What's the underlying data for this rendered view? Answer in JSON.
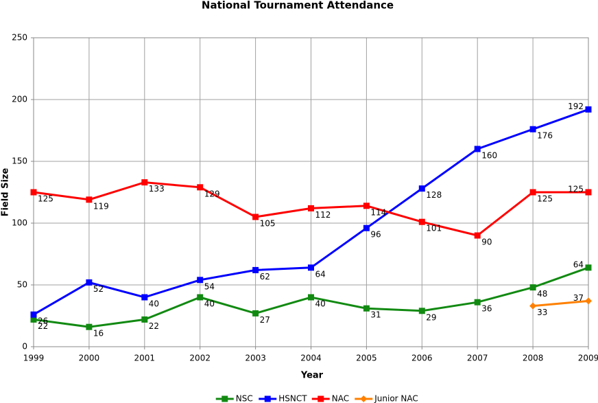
{
  "chart_data": {
    "type": "line",
    "title": "National Tournament Attendance",
    "x_label": "Year",
    "y_label": "Field Size",
    "x": [
      1999,
      2000,
      2001,
      2002,
      2003,
      2004,
      2005,
      2006,
      2007,
      2008,
      2009
    ],
    "xlim": [
      1999,
      2009
    ],
    "xticks": [
      1999,
      2000,
      2001,
      2002,
      2003,
      2004,
      2005,
      2006,
      2007,
      2008,
      2009
    ],
    "ylim": [
      0,
      250
    ],
    "yticks": [
      0,
      50,
      100,
      150,
      200,
      250
    ],
    "grid": true,
    "legend": "bottom",
    "series": [
      {
        "name": "NSC",
        "color": "#128a12",
        "marker": "square",
        "values": [
          22,
          16,
          22,
          40,
          27,
          40,
          31,
          29,
          36,
          48,
          64
        ]
      },
      {
        "name": "HSNCT",
        "color": "#0000ff",
        "marker": "square",
        "values": [
          26,
          52,
          40,
          54,
          62,
          64,
          96,
          128,
          160,
          176,
          192
        ]
      },
      {
        "name": "NAC",
        "color": "#ff0000",
        "marker": "square",
        "values": [
          125,
          119,
          133,
          129,
          105,
          112,
          114,
          101,
          90,
          125,
          125
        ]
      },
      {
        "name": "Junior NAC",
        "color": "#ff8000",
        "marker": "diamond",
        "values": [
          null,
          null,
          null,
          null,
          null,
          null,
          null,
          null,
          null,
          33,
          37
        ]
      }
    ]
  }
}
